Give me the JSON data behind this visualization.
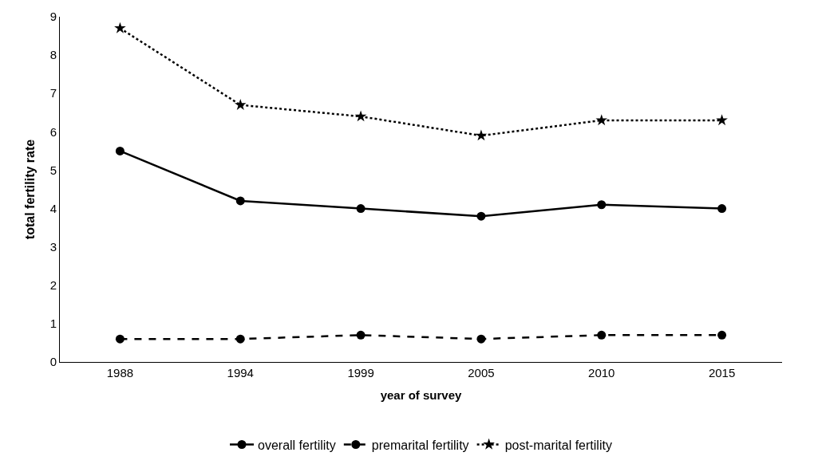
{
  "chart_data": {
    "type": "line",
    "xlabel": "year of survey",
    "ylabel": "total fertility rate",
    "categories": [
      "1988",
      "1994",
      "1999",
      "2005",
      "2010",
      "2015"
    ],
    "series": [
      {
        "name": "overall fertility",
        "color": "#000000",
        "values": [
          5.5,
          4.2,
          4.0,
          3.8,
          4.1,
          4.0
        ],
        "line_style": "solid",
        "marker": "circle"
      },
      {
        "name": "premarital fertility",
        "color": "#000000",
        "values": [
          0.6,
          0.6,
          0.7,
          0.6,
          0.7,
          0.7
        ],
        "line_style": "dashed",
        "marker": "circle"
      },
      {
        "name": "post-marital fertility",
        "color": "#000000",
        "values": [
          8.7,
          6.7,
          6.4,
          5.9,
          6.3,
          6.3
        ],
        "line_style": "dotted",
        "marker": "star"
      }
    ],
    "ylim": [
      0,
      9
    ],
    "yticks": [
      0,
      1,
      2,
      3,
      4,
      5,
      6,
      7,
      8,
      9
    ],
    "legend": "bottom"
  }
}
